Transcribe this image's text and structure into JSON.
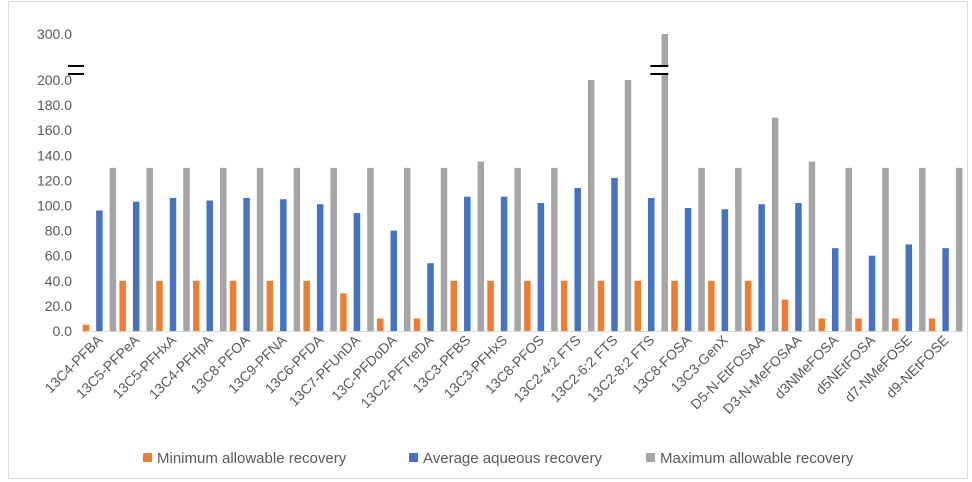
{
  "chart_data": {
    "type": "bar",
    "axis_break": {
      "from": 200,
      "to": 300
    },
    "ylim": [
      0,
      300
    ],
    "yticks": [
      "0.0",
      "20.0",
      "40.0",
      "60.0",
      "80.0",
      "100.0",
      "120.0",
      "140.0",
      "160.0",
      "180.0",
      "200.0",
      "300.0"
    ],
    "categories": [
      "13C4-PFBA",
      "13C5-PFPeA",
      "13C5-PFHxA",
      "13C4-PFHpA",
      "13C8-PFOA",
      "13C9-PFNA",
      "13C6-PFDA",
      "13C7-PFUnDA",
      "13C-PFDoDA",
      "13C2-PFTreDA",
      "13C3-PFBS",
      "13C3-PFHxS",
      "13C8-PFOS",
      "13C2-4:2 FTS",
      "13C2-6:2 FTS",
      "13C2-8:2 FTS",
      "13C8-FOSA",
      "13C3-GenX",
      "D5-N-EtFOSAA",
      "D3-N-MeFOSAA",
      "d3NMeFOSA",
      "d5NEtFOSA",
      "d7-NMeFOSE",
      "d9-NEtFOSE"
    ],
    "series": [
      {
        "name": "Minimum allowable recovery",
        "color": "#ED7D31",
        "values": [
          5,
          40,
          40,
          40,
          40,
          40,
          40,
          30,
          10,
          10,
          40,
          40,
          40,
          40,
          40,
          40,
          40,
          40,
          40,
          25,
          10,
          10,
          10,
          10
        ]
      },
      {
        "name": "Average aqueous recovery",
        "color": "#4472C4",
        "values": [
          96,
          103,
          106,
          104,
          106,
          105,
          101,
          94,
          80,
          54,
          107,
          107,
          102,
          114,
          122,
          106,
          98,
          97,
          101,
          102,
          66,
          60,
          69,
          66
        ]
      },
      {
        "name": "Maximum allowable recovery",
        "color": "#A5A5A5",
        "values": [
          130,
          130,
          130,
          130,
          130,
          130,
          130,
          130,
          130,
          130,
          135,
          130,
          130,
          200,
          200,
          300,
          130,
          130,
          170,
          135,
          130,
          130,
          130,
          130
        ]
      }
    ],
    "legend_position": "bottom",
    "grid": false
  }
}
